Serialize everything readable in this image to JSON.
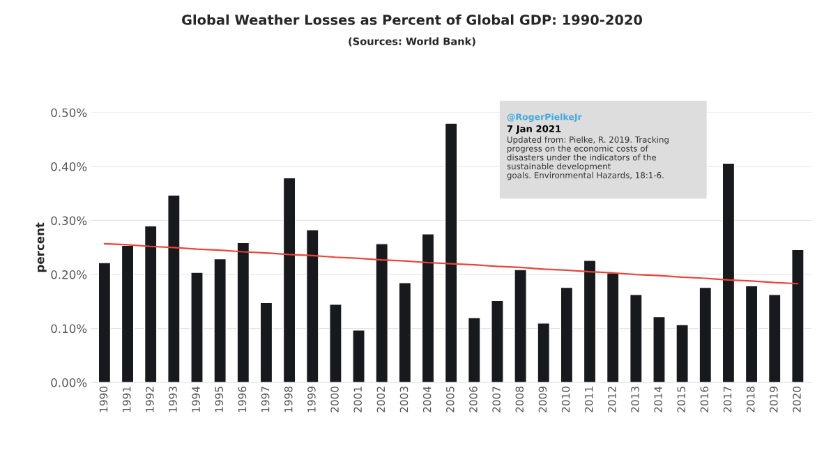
{
  "chart_data": {
    "type": "bar",
    "title": "Global Weather Losses as Percent of Global GDP: 1990-2020",
    "subtitle": "(Sources: World Bank)",
    "ylabel": "percent",
    "categories": [
      "1990",
      "1991",
      "1992",
      "1993",
      "1994",
      "1995",
      "1996",
      "1997",
      "1998",
      "1999",
      "2000",
      "2001",
      "2002",
      "2003",
      "2004",
      "2005",
      "2006",
      "2007",
      "2008",
      "2009",
      "2010",
      "2011",
      "2012",
      "2013",
      "2014",
      "2015",
      "2016",
      "2017",
      "2018",
      "2019",
      "2020"
    ],
    "series": [
      {
        "color": "#17191c",
        "values": [
          0.222,
          0.254,
          0.29,
          0.347,
          0.204,
          0.229,
          0.259,
          0.148,
          0.379,
          0.283,
          0.145,
          0.097,
          0.257,
          0.185,
          0.275,
          0.48,
          0.12,
          0.152,
          0.209,
          0.11,
          0.176,
          0.226,
          0.203,
          0.163,
          0.122,
          0.107,
          0.176,
          0.406,
          0.179,
          0.163,
          0.246
        ]
      },
      {
        "type": "line",
        "color": "#e8453c",
        "values": [
          0.257,
          0.255,
          0.252,
          0.25,
          0.247,
          0.245,
          0.242,
          0.24,
          0.237,
          0.235,
          0.232,
          0.23,
          0.227,
          0.225,
          0.222,
          0.22,
          0.218,
          0.215,
          0.213,
          0.21,
          0.208,
          0.205,
          0.203,
          0.2,
          0.198,
          0.195,
          0.193,
          0.19,
          0.188,
          0.185,
          0.183
        ]
      }
    ],
    "ylim": [
      0,
      0.5
    ],
    "yticks": [
      {
        "value": 0,
        "label": "0.00%"
      },
      {
        "value": 0.1,
        "label": "0.10%"
      },
      {
        "value": 0.2,
        "label": "0.20%"
      },
      {
        "value": 0.3,
        "label": "0.30%"
      },
      {
        "value": 0.4,
        "label": "0.40%"
      },
      {
        "value": 0.5,
        "label": "0.50%"
      }
    ],
    "grid": "y",
    "legend": false,
    "marker": "none",
    "line_style": "solid",
    "annotations": [
      "@RogerPielkeJr",
      "7 Jan 2021",
      "Updated from: Pielke, R. 2019. Tracking\nprogress on the economic costs of\ndisasters under the indicators of the\nsustainable development\ngoals. Environmental Hazards, 18:1-6."
    ]
  }
}
